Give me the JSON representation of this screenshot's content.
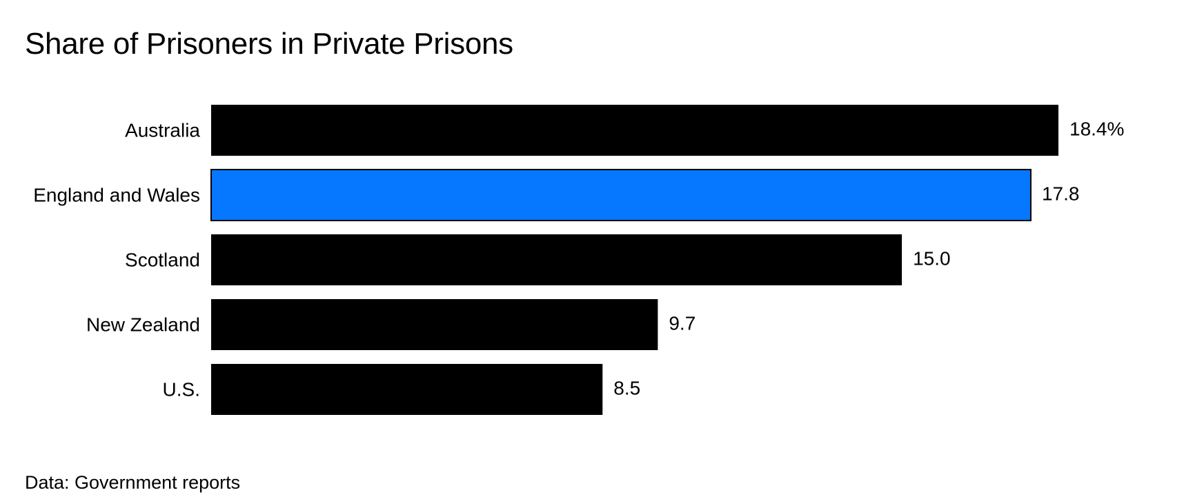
{
  "colors": {
    "default_bar": "#000000",
    "highlight_bar": "#0677ff",
    "highlight_stroke": "#000000",
    "text": "#000000",
    "background": "#ffffff"
  },
  "chart_data": {
    "type": "bar",
    "orientation": "horizontal",
    "title": "Share of Prisoners in Private Prisons",
    "source": "Data: Government reports",
    "unit_suffix": "%",
    "xlabel": "",
    "ylabel": "",
    "xlim": [
      0,
      18.4
    ],
    "grid": false,
    "legend": "none",
    "highlighted_category": "England and Wales",
    "categories": [
      "Australia",
      "England and Wales",
      "Scotland",
      "New Zealand",
      "U.S."
    ],
    "values": [
      18.4,
      17.8,
      15.0,
      9.7,
      8.5
    ],
    "value_labels": [
      "18.4%",
      "17.8",
      "15.0",
      "9.7",
      "8.5"
    ]
  }
}
